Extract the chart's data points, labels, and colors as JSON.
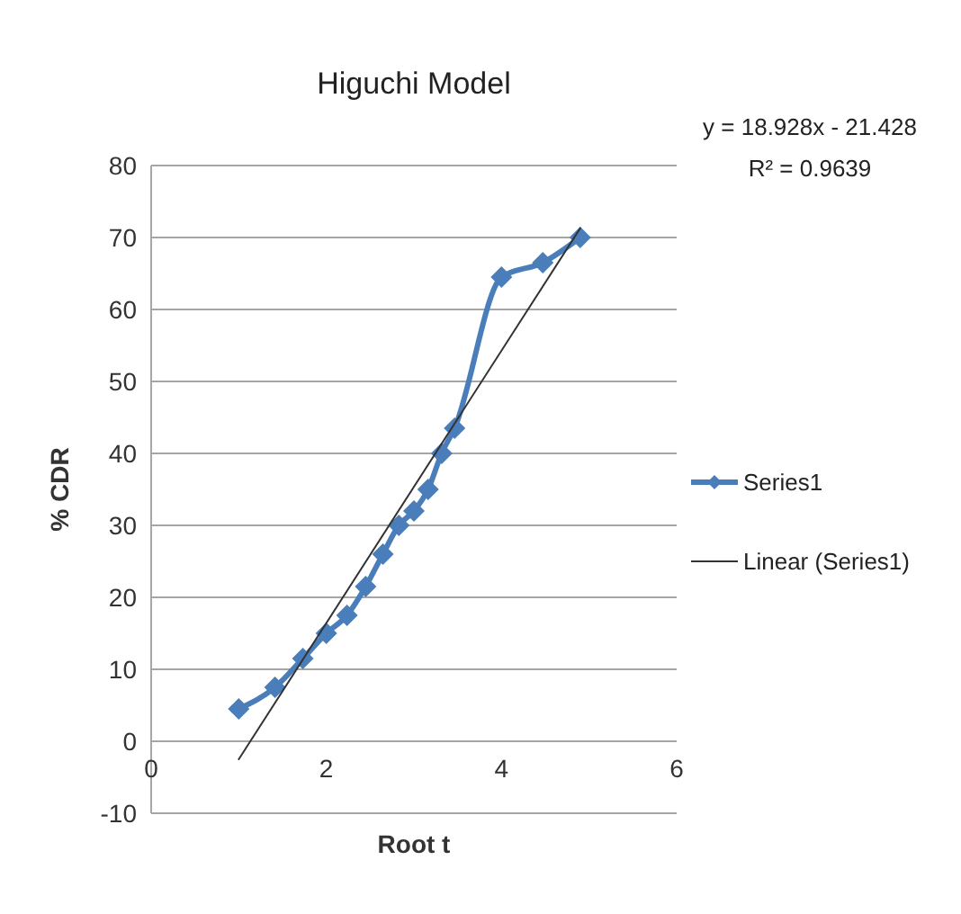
{
  "chart_data": {
    "type": "line",
    "title": "Higuchi Model",
    "xlabel": "Root t",
    "ylabel": "% CDR",
    "xlim": [
      0,
      6
    ],
    "xticks": [
      0,
      2,
      4,
      6
    ],
    "ylim": [
      -10,
      80
    ],
    "yticks": [
      -10,
      0,
      10,
      20,
      30,
      40,
      50,
      60,
      70,
      80
    ],
    "grid": "y",
    "legend": "right",
    "series": [
      {
        "name": "Series1",
        "color": "#4a7ebb",
        "marker": "diamond",
        "x": [
          1,
          1.414,
          1.732,
          2,
          2.236,
          2.449,
          2.646,
          2.828,
          3,
          3.162,
          3.317,
          3.464,
          4,
          4.472,
          4.899
        ],
        "values": [
          4.5,
          7.5,
          11.5,
          15,
          17.5,
          21.5,
          26,
          30,
          32,
          35,
          40,
          43.5,
          64.5,
          66.5,
          70
        ]
      },
      {
        "name": "Linear (Series1)",
        "color": "#333333",
        "type": "line",
        "marker": "none",
        "x": [
          1,
          4.899
        ],
        "values": [
          -2.5,
          71.3
        ]
      }
    ],
    "annotations": [
      "y = 18.928x - 21.428",
      "R² = 0.9639"
    ]
  }
}
